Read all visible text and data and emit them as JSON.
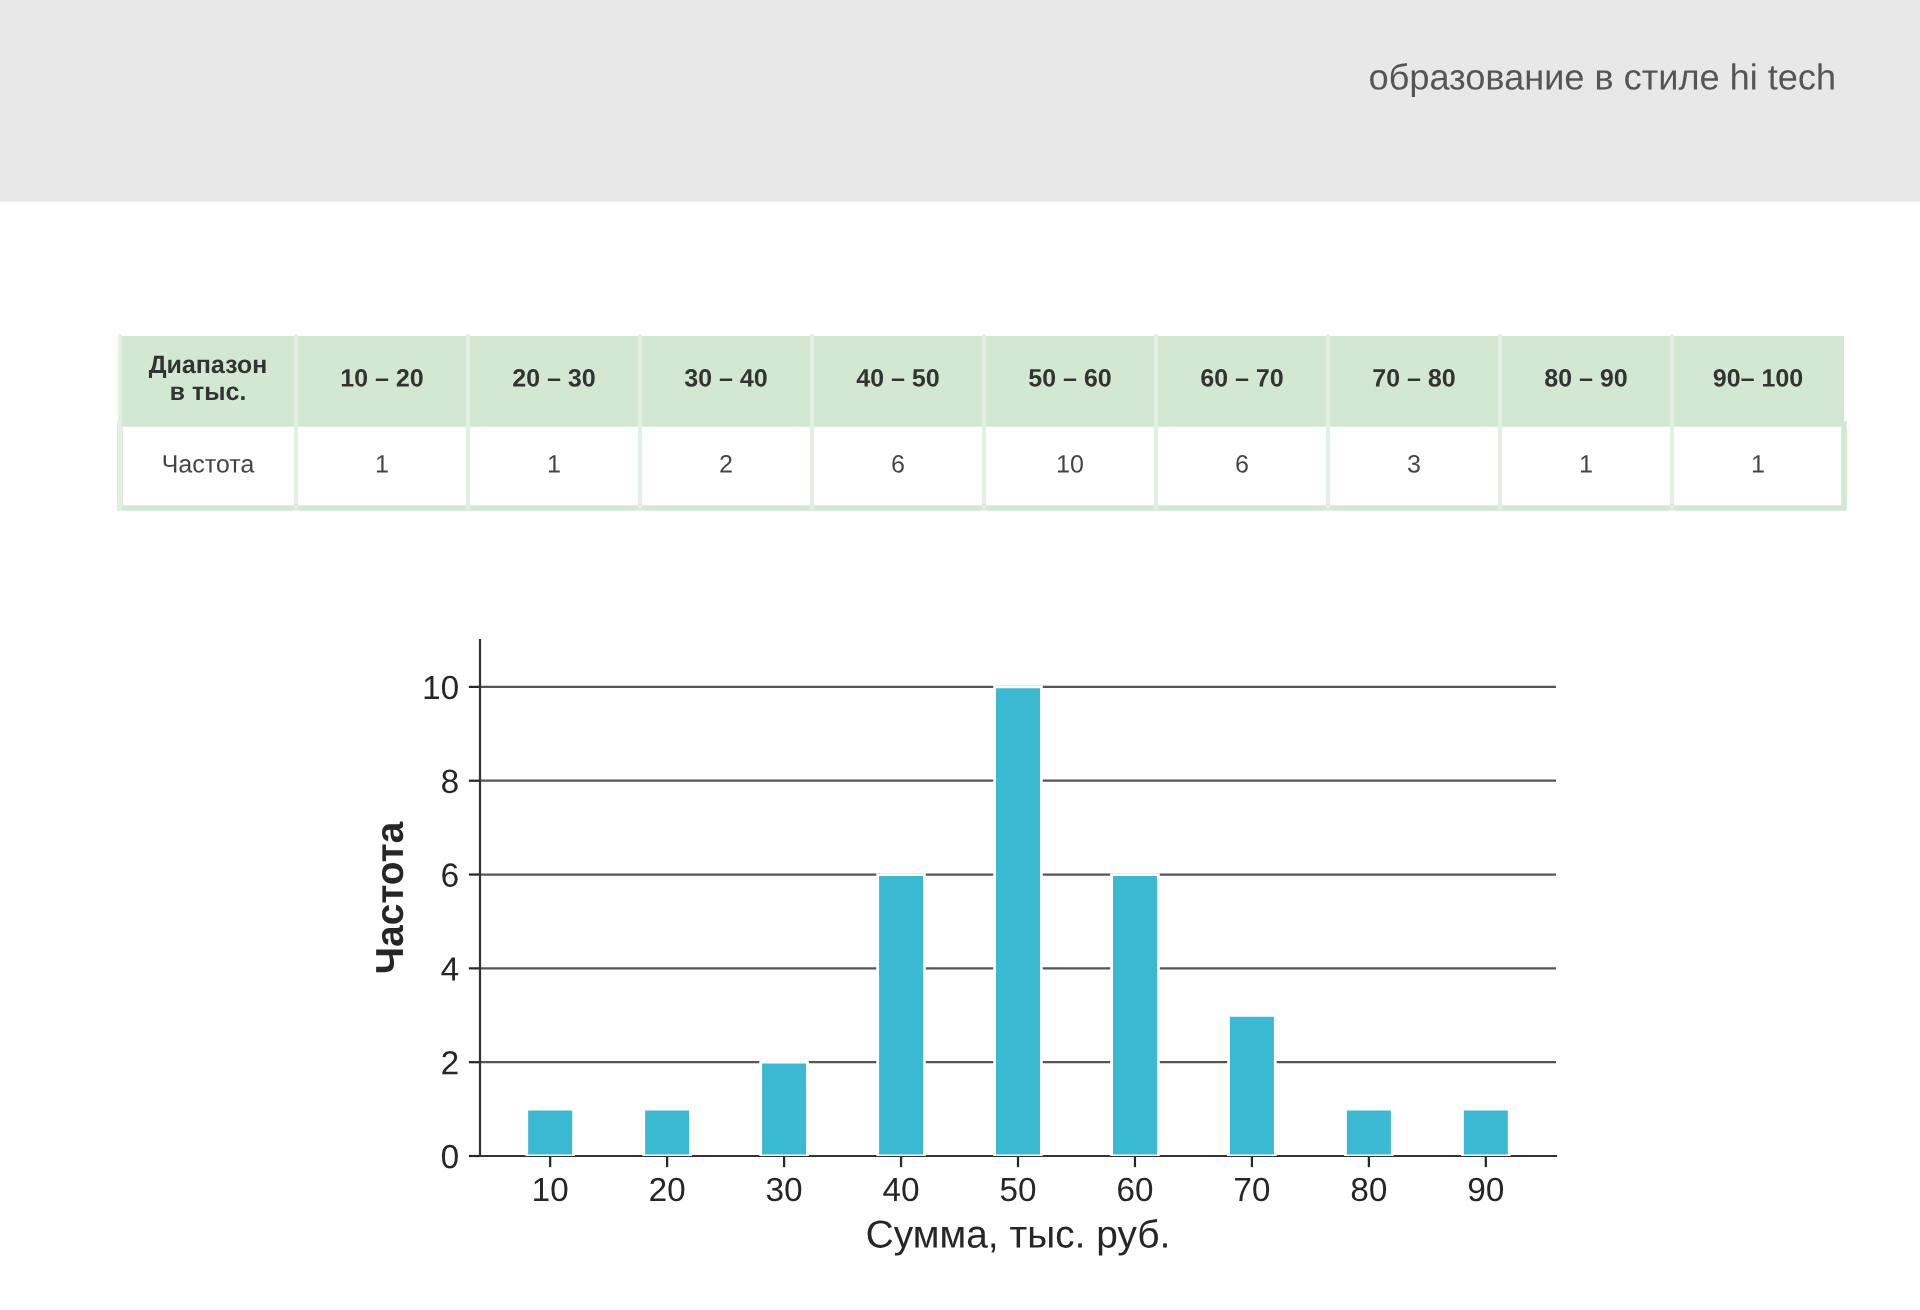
{
  "chart_data": [
    {
      "type": "other",
      "annotations": [
        "Диапазон\nв тыс.",
        "10 – 20",
        "20 – 30",
        "30 – 40",
        "40 – 50",
        "50 – 60",
        "60 – 70",
        "70 – 80",
        "80 – 90",
        "90– 100",
        "Частота",
        "1",
        "1",
        "2",
        "6",
        "10",
        "6",
        "3",
        "1",
        "1"
      ]
    },
    {
      "type": "bar",
      "xlabel": "Сумма, тыс. руб.",
      "ylabel": "Частота",
      "categories": [
        "10",
        "20",
        "30",
        "40",
        "50",
        "60",
        "70",
        "80",
        "90"
      ],
      "values": [
        1,
        1,
        2,
        6,
        10,
        6,
        3,
        1,
        1
      ],
      "color": "#3cb9d2",
      "ylim": [
        0,
        11
      ],
      "yticks": [
        0,
        2,
        4,
        6,
        8,
        10
      ],
      "grid": "y",
      "annotations": [
        "образование в стиле hi tech"
      ]
    }
  ]
}
